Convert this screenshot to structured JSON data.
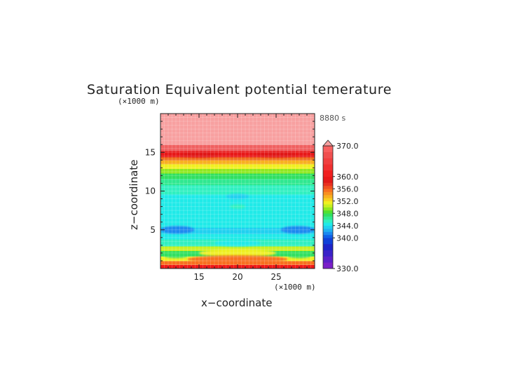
{
  "chart_data": {
    "type": "heatmap",
    "title": "Saturation Equivalent potential temerature",
    "xlabel": "x−coordinate",
    "ylabel": "z−coordinate",
    "x_unit": "(×1000 m)",
    "y_unit": "(×1000 m)",
    "time_label": "8880 s",
    "xlim": [
      10,
      30
    ],
    "ylim": [
      0,
      20
    ],
    "x_ticks": [
      15,
      20,
      25
    ],
    "y_ticks": [
      5,
      10,
      15
    ],
    "colorbar": {
      "min": 330,
      "max": 370,
      "tick_labels": [
        "370.0",
        "360.0",
        "356.0",
        "352.0",
        "348.0",
        "344.0",
        "340.0",
        "330.0"
      ],
      "tick_values": [
        370,
        360,
        356,
        352,
        348,
        344,
        340,
        330
      ],
      "levels": [
        {
          "from": 330,
          "to": 332,
          "color": "#7a1fc8"
        },
        {
          "from": 332,
          "to": 334,
          "color": "#5a20c8"
        },
        {
          "from": 334,
          "to": 336,
          "color": "#3a22c8"
        },
        {
          "from": 336,
          "to": 338,
          "color": "#1e24c8"
        },
        {
          "from": 338,
          "to": 340,
          "color": "#1040d8"
        },
        {
          "from": 340,
          "to": 341,
          "color": "#1060e8"
        },
        {
          "from": 341,
          "to": 342,
          "color": "#1a88f0"
        },
        {
          "from": 342,
          "to": 343,
          "color": "#20b0f0"
        },
        {
          "from": 343,
          "to": 344,
          "color": "#20d0f0"
        },
        {
          "from": 344,
          "to": 345,
          "color": "#20eae8"
        },
        {
          "from": 345,
          "to": 346,
          "color": "#30f0c0"
        },
        {
          "from": 346,
          "to": 347,
          "color": "#30e890"
        },
        {
          "from": 347,
          "to": 348,
          "color": "#30e060"
        },
        {
          "from": 348,
          "to": 349,
          "color": "#50e030"
        },
        {
          "from": 349,
          "to": 350,
          "color": "#90e820"
        },
        {
          "from": 350,
          "to": 351,
          "color": "#c8f020"
        },
        {
          "from": 351,
          "to": 352,
          "color": "#f0f020"
        },
        {
          "from": 352,
          "to": 353,
          "color": "#f8d020"
        },
        {
          "from": 353,
          "to": 354,
          "color": "#f8b020"
        },
        {
          "from": 354,
          "to": 355,
          "color": "#f89020"
        },
        {
          "from": 355,
          "to": 356,
          "color": "#f87020"
        },
        {
          "from": 356,
          "to": 357,
          "color": "#f05020"
        },
        {
          "from": 357,
          "to": 358,
          "color": "#e83020"
        },
        {
          "from": 358,
          "to": 359,
          "color": "#e01818"
        },
        {
          "from": 359,
          "to": 360,
          "color": "#e81818"
        },
        {
          "from": 360,
          "to": 362,
          "color": "#f02020"
        },
        {
          "from": 362,
          "to": 364,
          "color": "#f03030"
        },
        {
          "from": 364,
          "to": 366,
          "color": "#f04040"
        },
        {
          "from": 366,
          "to": 368,
          "color": "#f05050"
        },
        {
          "from": 368,
          "to": 370,
          "color": "#f86060"
        }
      ],
      "over_color": "#f8a0a0"
    },
    "bands": [
      {
        "z_from": 0.0,
        "z_to": 0.5,
        "color": "#f01818"
      },
      {
        "z_from": 0.5,
        "z_to": 1.0,
        "color": "#f87020"
      },
      {
        "z_from": 1.0,
        "z_to": 1.6,
        "color": "#f0f020"
      },
      {
        "z_from": 1.6,
        "z_to": 2.3,
        "color": "#30e060"
      },
      {
        "z_from": 2.3,
        "z_to": 2.9,
        "color": "#c8f020"
      },
      {
        "z_from": 2.9,
        "z_to": 3.8,
        "color": "#30f0c0"
      },
      {
        "z_from": 3.8,
        "z_to": 4.5,
        "color": "#20eae8"
      },
      {
        "z_from": 4.5,
        "z_to": 5.3,
        "color": "#20d0f0"
      },
      {
        "z_from": 5.3,
        "z_to": 9.6,
        "color": "#20eae8"
      },
      {
        "z_from": 9.6,
        "z_to": 10.8,
        "color": "#30f0c0"
      },
      {
        "z_from": 10.8,
        "z_to": 11.6,
        "color": "#30e890"
      },
      {
        "z_from": 11.6,
        "z_to": 12.3,
        "color": "#30e060"
      },
      {
        "z_from": 12.3,
        "z_to": 12.9,
        "color": "#90e820"
      },
      {
        "z_from": 12.9,
        "z_to": 13.5,
        "color": "#f0f020"
      },
      {
        "z_from": 13.5,
        "z_to": 14.0,
        "color": "#f8b020"
      },
      {
        "z_from": 14.0,
        "z_to": 14.4,
        "color": "#f07020"
      },
      {
        "z_from": 14.4,
        "z_to": 15.2,
        "color": "#e81818"
      },
      {
        "z_from": 15.2,
        "z_to": 16.0,
        "color": "#f06060"
      },
      {
        "z_from": 16.0,
        "z_to": 20.0,
        "color": "#f8a0a0"
      }
    ],
    "features": [
      {
        "type": "ellipse",
        "x": 12.2,
        "z": 5.0,
        "rx": 2.2,
        "rz": 0.5,
        "color": "#1a88f0"
      },
      {
        "type": "ellipse",
        "x": 27.8,
        "z": 5.0,
        "rx": 2.2,
        "rz": 0.5,
        "color": "#1a88f0"
      },
      {
        "type": "ellipse",
        "x": 20.0,
        "z": 9.3,
        "rx": 1.5,
        "rz": 0.35,
        "color": "#20d0f0"
      },
      {
        "type": "ellipse",
        "x": 20.0,
        "z": 8.0,
        "rx": 1.0,
        "rz": 0.3,
        "color": "#30f0c0"
      },
      {
        "type": "ellipse",
        "x": 20.0,
        "z": 3.3,
        "rx": 3.0,
        "rz": 0.45,
        "color": "#20eae8"
      },
      {
        "type": "ellipse",
        "x": 20.0,
        "z": 2.0,
        "rx": 5.0,
        "rz": 0.5,
        "color": "#f0f020"
      },
      {
        "type": "ellipse",
        "x": 20.0,
        "z": 1.2,
        "rx": 6.5,
        "rz": 0.5,
        "color": "#f87020"
      },
      {
        "type": "ellipse",
        "x": 12.0,
        "z": 1.7,
        "rx": 1.6,
        "rz": 0.35,
        "color": "#30e060"
      },
      {
        "type": "ellipse",
        "x": 28.0,
        "z": 1.7,
        "rx": 1.6,
        "rz": 0.35,
        "color": "#30e060"
      },
      {
        "type": "ellipse",
        "x": 15.0,
        "z": 14.7,
        "rx": 2.5,
        "rz": 0.35,
        "color": "#e01818"
      },
      {
        "type": "ellipse",
        "x": 25.0,
        "z": 14.7,
        "rx": 2.5,
        "rz": 0.35,
        "color": "#e01818"
      }
    ]
  }
}
